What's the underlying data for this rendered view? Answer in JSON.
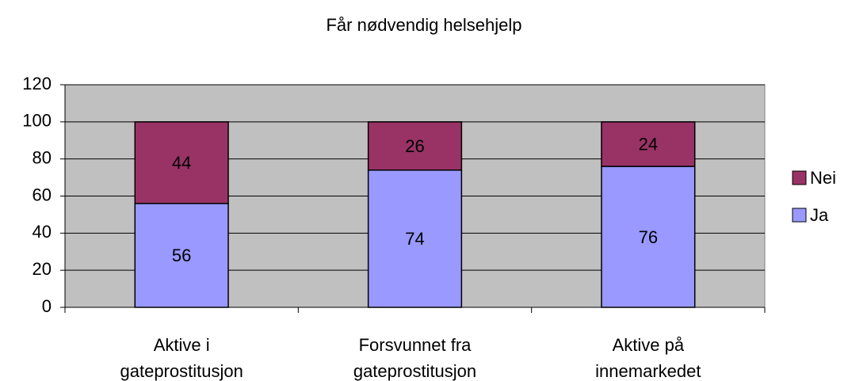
{
  "chart_data": {
    "type": "stacked_bar",
    "title": "Får nødvendig helsehjelp",
    "categories": [
      "Aktive i\ngateprostitusjon",
      "Forsvunnet fra\ngateprostitusjon",
      "Aktive på\ninnemarkedet"
    ],
    "series": [
      {
        "name": "Ja",
        "color": "#9999ff",
        "values": [
          56,
          74,
          76
        ]
      },
      {
        "name": "Nei",
        "color": "#993366",
        "values": [
          44,
          26,
          24
        ]
      }
    ],
    "ylim": [
      0,
      120
    ],
    "yticks": [
      0,
      20,
      40,
      60,
      80,
      100,
      120
    ],
    "grid": true,
    "legend": "right"
  }
}
